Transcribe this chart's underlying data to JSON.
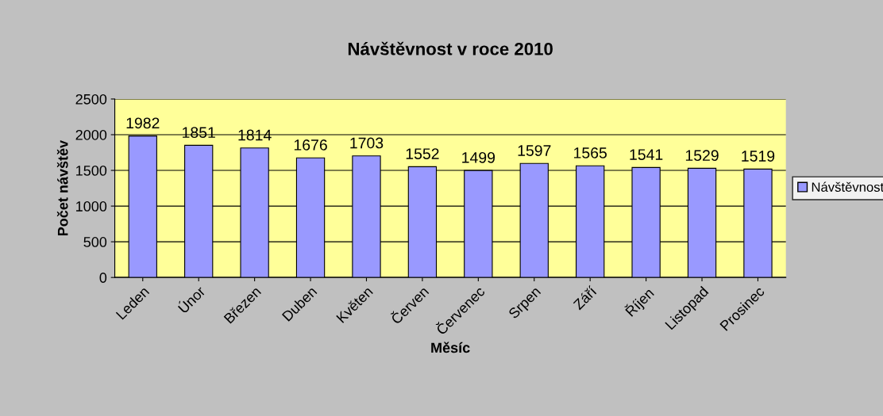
{
  "chart_data": {
    "type": "bar",
    "title": "Návštěvnost v roce 2010",
    "xlabel": "Měsíc",
    "ylabel": "Počet návštěv",
    "categories": [
      "Leden",
      "Únor",
      "Březen",
      "Duben",
      "Květen",
      "Červen",
      "Červenec",
      "Srpen",
      "Září",
      "Říjen",
      "Listopad",
      "Prosinec"
    ],
    "series": [
      {
        "name": "Návštěvnost",
        "color": "#9999ff",
        "values": [
          1982,
          1851,
          1814,
          1676,
          1703,
          1552,
          1499,
          1597,
          1565,
          1541,
          1529,
          1519
        ]
      }
    ],
    "ylim": [
      0,
      2500
    ],
    "yticks": [
      0,
      500,
      1000,
      1500,
      2000,
      2500
    ],
    "grid": "y",
    "legend": "right",
    "data_labels": true
  }
}
